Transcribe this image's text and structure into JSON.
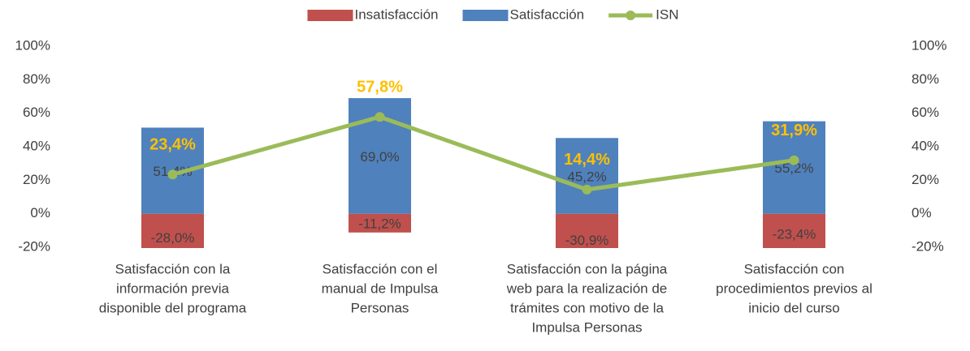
{
  "chart_data": {
    "type": "bar+line",
    "categories": [
      [
        "Satisfacción con la",
        "información previa",
        "disponible del programa"
      ],
      [
        "Satisfacción con el",
        "manual de Impulsa",
        "Personas"
      ],
      [
        "Satisfacción con la página",
        "web para la realización de",
        "trámites con motivo de la",
        "Impulsa Personas"
      ],
      [
        "Satisfacción con",
        "procedimientos previos al",
        "inicio del curso"
      ]
    ],
    "series": [
      {
        "name": "Insatisfacción",
        "type": "bar",
        "color": "#c0504d",
        "values": [
          -28.0,
          -11.2,
          -30.9,
          -23.4
        ],
        "value_labels": [
          "-28,0%",
          "-11,2%",
          "-30,9%",
          "-23,4%"
        ]
      },
      {
        "name": "Satisfacción",
        "type": "bar",
        "color": "#4f81bd",
        "values": [
          51.4,
          69.0,
          45.2,
          55.2
        ],
        "value_labels": [
          "51,4%",
          "69,0%",
          "45,2%",
          "55,2%"
        ]
      },
      {
        "name": "ISN",
        "type": "line",
        "color": "#9bbb59",
        "values": [
          23.4,
          57.8,
          14.4,
          31.9
        ],
        "value_labels": [
          "23,4%",
          "57,8%",
          "14,4%",
          "31,9%"
        ]
      }
    ],
    "ylim": [
      -20,
      100
    ],
    "yticks": [
      {
        "value": -20,
        "label": "-20%"
      },
      {
        "value": 0,
        "label": "0%"
      },
      {
        "value": 20,
        "label": "20%"
      },
      {
        "value": 40,
        "label": "40%"
      },
      {
        "value": 60,
        "label": "60%"
      },
      {
        "value": 80,
        "label": "80%"
      },
      {
        "value": 100,
        "label": "100%"
      }
    ],
    "y2lim": [
      -20,
      100
    ],
    "y2ticks": [
      {
        "value": -20,
        "label": "-20%"
      },
      {
        "value": 0,
        "label": "0%"
      },
      {
        "value": 20,
        "label": "20%"
      },
      {
        "value": 40,
        "label": "40%"
      },
      {
        "value": 60,
        "label": "60%"
      },
      {
        "value": 80,
        "label": "80%"
      },
      {
        "value": 100,
        "label": "100%"
      }
    ],
    "legend": "top"
  }
}
